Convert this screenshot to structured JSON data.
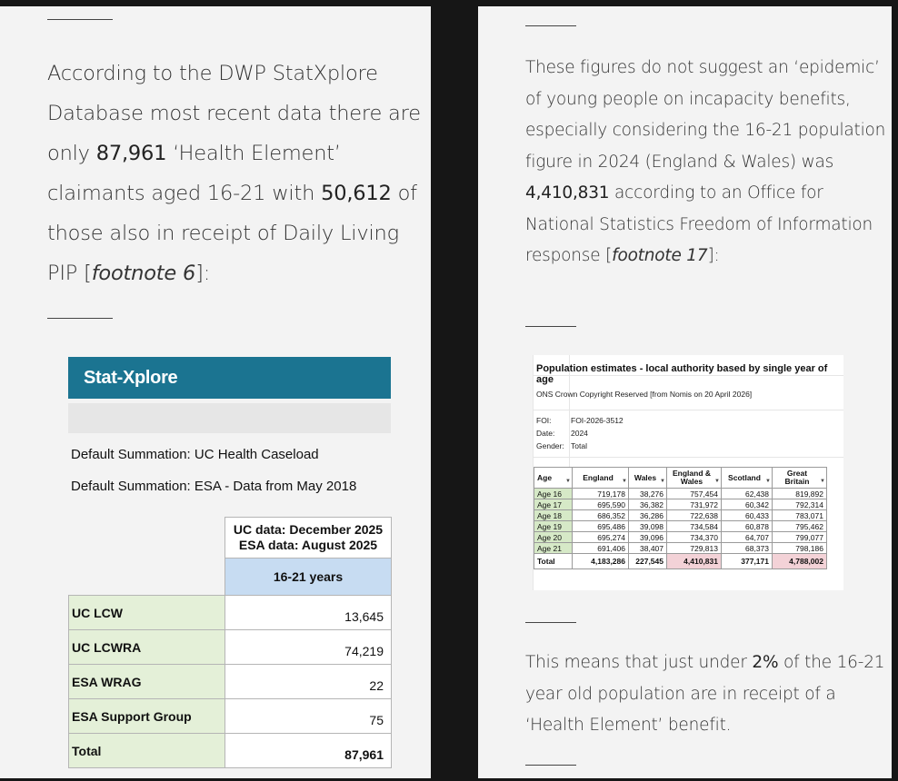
{
  "left_panel": {
    "paragraph": {
      "t1": "According to the DWP StatXplore Database most recent data there are only ",
      "b1": "87,961",
      "t2": " ‘Health Element’ claimants aged 16-21 with ",
      "b2": "50,612",
      "t3": " of those also in receipt of Daily Living PIP [",
      "fn": "footnote 6",
      "t4": "]:"
    },
    "statxplore": {
      "brand": "Stat-Xplore",
      "summation_1": "Default Summation: UC Health Caseload",
      "summation_2": "Default Summation: ESA - Data from May 2018",
      "header_line1": "UC data: December 2025",
      "header_line2": "ESA data: August 2025",
      "column": "16-21 years",
      "rows": [
        {
          "label": "UC LCW",
          "value": "13,645"
        },
        {
          "label": "UC LCWRA",
          "value": "74,219"
        },
        {
          "label": "ESA WRAG",
          "value": "22"
        },
        {
          "label": "ESA Support Group",
          "value": "75"
        },
        {
          "label": "Total",
          "value": "87,961"
        }
      ]
    }
  },
  "right_panel": {
    "paragraph1": {
      "t1": "These figures do not suggest an ‘epidemic’ of young people on incapacity benefits, especially considering the 16-21 population figure in 2024 (England & Wales) was ",
      "b1": "4,410,831",
      "t2": " according to an Office for National Statistics Freedom of Information response [",
      "fn": "footnote 17",
      "t3": "]:"
    },
    "ons_sheet": {
      "title": "Population estimates - local authority based by single year of age",
      "copyright": "ONS Crown Copyright Reserved [from Nomis on 20 April 2026]",
      "meta": [
        {
          "key": "FOI:",
          "value": "FOI-2026-3512"
        },
        {
          "key": "Date:",
          "value": "2024"
        },
        {
          "key": "Gender:",
          "value": "Total"
        }
      ],
      "headers": [
        "Age",
        "England",
        "Wales",
        "England & Wales",
        "Scotland",
        "Great Britain"
      ],
      "rows": [
        [
          "Age 16",
          "719,178",
          "38,276",
          "757,454",
          "62,438",
          "819,892"
        ],
        [
          "Age 17",
          "695,590",
          "36,382",
          "731,972",
          "60,342",
          "792,314"
        ],
        [
          "Age 18",
          "686,352",
          "36,286",
          "722,638",
          "60,433",
          "783,071"
        ],
        [
          "Age 19",
          "695,486",
          "39,098",
          "734,584",
          "60,878",
          "795,462"
        ],
        [
          "Age 20",
          "695,274",
          "39,096",
          "734,370",
          "64,707",
          "799,077"
        ],
        [
          "Age 21",
          "691,406",
          "38,407",
          "729,813",
          "68,373",
          "798,186"
        ]
      ],
      "total": [
        "Total",
        "4,183,286",
        "227,545",
        "4,410,831",
        "377,171",
        "4,788,002"
      ]
    },
    "paragraph2": {
      "t1": "This means that just under ",
      "b1": "2%",
      "t2": " of the 16-21 year old population are in receipt of a ‘Health Element’ benefit."
    }
  }
}
